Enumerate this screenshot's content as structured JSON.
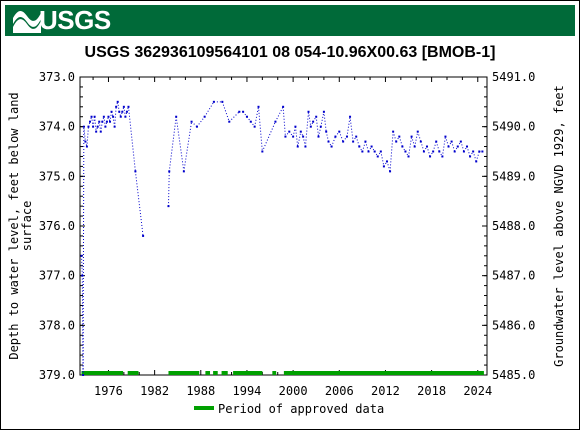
{
  "header": {
    "logo_text": "USGS",
    "logo_name": "usgs-logo"
  },
  "colors": {
    "banner": "#006a39",
    "series": "#0000cc",
    "approved": "#00a000"
  },
  "chart_data": {
    "type": "scatter",
    "title": "USGS 362936109564101 08 054-10.96X00.63 [BMOB-1]",
    "ylabel_left": "Depth to water level, feet below land surface",
    "ylabel_left_lines": [
      "Depth to water level, feet below land",
      "surface"
    ],
    "ylabel_right": "Groundwater level above NGVD 1929, feet",
    "xlim": [
      1972.3,
      2025.2
    ],
    "ylim_left": [
      373.0,
      379.0
    ],
    "ylim_left_inverted": true,
    "ylim_right": [
      5485.0,
      5491.0
    ],
    "x_ticks": [
      1976,
      1982,
      1988,
      1994,
      2000,
      2006,
      2012,
      2018,
      2024
    ],
    "x_tick_labels": [
      "1976",
      "1982",
      "1988",
      "1994",
      "2000",
      "2006",
      "2012",
      "2018",
      "2024"
    ],
    "y_left_ticks": [
      373.0,
      374.0,
      375.0,
      376.0,
      377.0,
      378.0,
      379.0
    ],
    "y_left_tick_labels": [
      "373.0",
      "374.0",
      "375.0",
      "376.0",
      "377.0",
      "378.0",
      "379.0"
    ],
    "y_right_ticks": [
      5491.0,
      5490.0,
      5489.0,
      5488.0,
      5487.0,
      5486.0,
      5485.0
    ],
    "y_right_tick_labels": [
      "5491.0",
      "5490.0",
      "5489.0",
      "5488.0",
      "5487.0",
      "5486.0",
      "5485.0"
    ],
    "series": [
      {
        "name": "Depth to water level",
        "marker": "dotted-line-with-points",
        "points": [
          [
            1972.5,
            376.6
          ],
          [
            1972.6,
            377.0
          ],
          [
            1972.7,
            379.0
          ],
          [
            1972.8,
            374.0
          ],
          [
            1973.0,
            374.3
          ],
          [
            1973.2,
            374.4
          ],
          [
            1973.4,
            374.0
          ],
          [
            1973.6,
            373.9
          ],
          [
            1973.8,
            373.8
          ],
          [
            1974.0,
            374.0
          ],
          [
            1974.2,
            373.8
          ],
          [
            1974.4,
            374.1
          ],
          [
            1974.6,
            374.0
          ],
          [
            1974.8,
            373.9
          ],
          [
            1975.0,
            374.1
          ],
          [
            1975.2,
            373.9
          ],
          [
            1975.4,
            373.8
          ],
          [
            1975.6,
            374.0
          ],
          [
            1975.8,
            373.9
          ],
          [
            1976.0,
            373.8
          ],
          [
            1976.2,
            373.9
          ],
          [
            1976.4,
            373.7
          ],
          [
            1976.6,
            373.8
          ],
          [
            1976.8,
            374.0
          ],
          [
            1977.0,
            373.6
          ],
          [
            1977.2,
            373.5
          ],
          [
            1977.4,
            373.7
          ],
          [
            1977.6,
            373.8
          ],
          [
            1977.8,
            373.7
          ],
          [
            1978.0,
            373.6
          ],
          [
            1978.2,
            373.8
          ],
          [
            1978.4,
            373.7
          ],
          [
            1978.6,
            373.6
          ],
          [
            1979.5,
            374.9
          ],
          [
            1980.5,
            376.2
          ],
          [
            1983.8,
            375.6
          ],
          [
            1983.9,
            374.9
          ],
          [
            1984.8,
            373.8
          ],
          [
            1985.8,
            374.9
          ],
          [
            1986.8,
            373.9
          ],
          [
            1987.5,
            374.0
          ],
          [
            1988.5,
            373.8
          ],
          [
            1989.7,
            373.5
          ],
          [
            1990.8,
            373.5
          ],
          [
            1991.7,
            373.9
          ],
          [
            1993.0,
            373.7
          ],
          [
            1993.5,
            373.7
          ],
          [
            1994.0,
            373.8
          ],
          [
            1994.5,
            373.9
          ],
          [
            1995.0,
            374.0
          ],
          [
            1995.5,
            373.6
          ],
          [
            1996.0,
            374.5
          ],
          [
            1997.7,
            373.9
          ],
          [
            1998.7,
            373.6
          ],
          [
            1999.0,
            374.2
          ],
          [
            1999.5,
            374.1
          ],
          [
            2000.0,
            374.2
          ],
          [
            2000.3,
            374.0
          ],
          [
            2000.6,
            374.4
          ],
          [
            2001.0,
            374.1
          ],
          [
            2001.3,
            374.2
          ],
          [
            2001.6,
            374.4
          ],
          [
            2002.0,
            373.7
          ],
          [
            2002.3,
            374.0
          ],
          [
            2002.6,
            373.9
          ],
          [
            2003.0,
            373.8
          ],
          [
            2003.3,
            374.2
          ],
          [
            2003.6,
            374.0
          ],
          [
            2004.0,
            373.7
          ],
          [
            2004.3,
            374.1
          ],
          [
            2004.6,
            374.3
          ],
          [
            2005.0,
            374.4
          ],
          [
            2005.5,
            374.2
          ],
          [
            2006.0,
            374.1
          ],
          [
            2006.5,
            374.3
          ],
          [
            2007.0,
            374.2
          ],
          [
            2007.4,
            373.8
          ],
          [
            2007.8,
            374.3
          ],
          [
            2008.2,
            374.2
          ],
          [
            2008.6,
            374.4
          ],
          [
            2009.0,
            374.5
          ],
          [
            2009.4,
            374.3
          ],
          [
            2009.8,
            374.5
          ],
          [
            2010.2,
            374.4
          ],
          [
            2010.6,
            374.5
          ],
          [
            2011.0,
            374.6
          ],
          [
            2011.4,
            374.5
          ],
          [
            2011.8,
            374.8
          ],
          [
            2012.2,
            374.7
          ],
          [
            2012.6,
            374.9
          ],
          [
            2013.0,
            374.1
          ],
          [
            2013.4,
            374.3
          ],
          [
            2013.8,
            374.2
          ],
          [
            2014.2,
            374.4
          ],
          [
            2014.6,
            374.5
          ],
          [
            2015.0,
            374.6
          ],
          [
            2015.4,
            374.2
          ],
          [
            2015.8,
            374.4
          ],
          [
            2016.2,
            374.1
          ],
          [
            2016.6,
            374.3
          ],
          [
            2017.0,
            374.5
          ],
          [
            2017.4,
            374.4
          ],
          [
            2017.8,
            374.6
          ],
          [
            2018.2,
            374.5
          ],
          [
            2018.6,
            374.3
          ],
          [
            2019.0,
            374.5
          ],
          [
            2019.4,
            374.6
          ],
          [
            2019.8,
            374.2
          ],
          [
            2020.2,
            374.4
          ],
          [
            2020.6,
            374.3
          ],
          [
            2021.0,
            374.5
          ],
          [
            2021.4,
            374.4
          ],
          [
            2021.8,
            374.3
          ],
          [
            2022.2,
            374.5
          ],
          [
            2022.6,
            374.4
          ],
          [
            2023.0,
            374.6
          ],
          [
            2023.4,
            374.5
          ],
          [
            2023.8,
            374.7
          ],
          [
            2024.2,
            374.5
          ],
          [
            2024.6,
            374.5
          ]
        ]
      }
    ],
    "approved_periods": [
      [
        1972.5,
        1977.9
      ],
      [
        1978.5,
        1979.9
      ],
      [
        1983.8,
        1987.8
      ],
      [
        1988.6,
        1989.2
      ],
      [
        1989.6,
        1990.2
      ],
      [
        1990.7,
        1991.5
      ],
      [
        1992.2,
        1996.0
      ],
      [
        1997.3,
        1997.8
      ],
      [
        1998.8,
        2024.8
      ]
    ],
    "legend": {
      "label": "Period of approved data",
      "placement": "bottom-center"
    }
  }
}
